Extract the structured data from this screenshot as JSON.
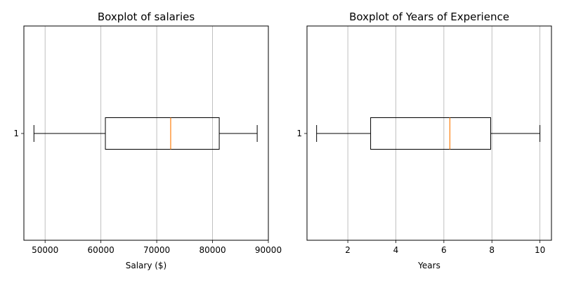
{
  "chart_data": [
    {
      "type": "boxplot",
      "orientation": "horizontal",
      "title": "Boxplot of salaries",
      "xlabel": "Salary ($)",
      "ylabel": "",
      "xlim": [
        46200,
        90000
      ],
      "xticks": [
        50000,
        60000,
        70000,
        80000,
        90000
      ],
      "xtick_labels": [
        "50000",
        "60000",
        "70000",
        "80000",
        "90000"
      ],
      "categories": [
        "1"
      ],
      "grid": "x",
      "box": {
        "whisker_low": 48000,
        "q1": 60800,
        "median": 72500,
        "q3": 81200,
        "whisker_high": 88000
      },
      "colors": {
        "median": "#ff7f0e",
        "box": "#000000",
        "grid": "#b0b0b0"
      }
    },
    {
      "type": "boxplot",
      "orientation": "horizontal",
      "title": "Boxplot of Years of Experience",
      "xlabel": "Years",
      "ylabel": "",
      "xlim": [
        0.3,
        10.48
      ],
      "xticks": [
        2,
        4,
        6,
        8,
        10
      ],
      "xtick_labels": [
        "2",
        "4",
        "6",
        "8",
        "10"
      ],
      "categories": [
        "1"
      ],
      "grid": "x",
      "box": {
        "whisker_low": 0.7,
        "q1": 2.95,
        "median": 6.25,
        "q3": 7.95,
        "whisker_high": 10.0
      },
      "colors": {
        "median": "#ff7f0e",
        "box": "#000000",
        "grid": "#b0b0b0"
      }
    }
  ]
}
